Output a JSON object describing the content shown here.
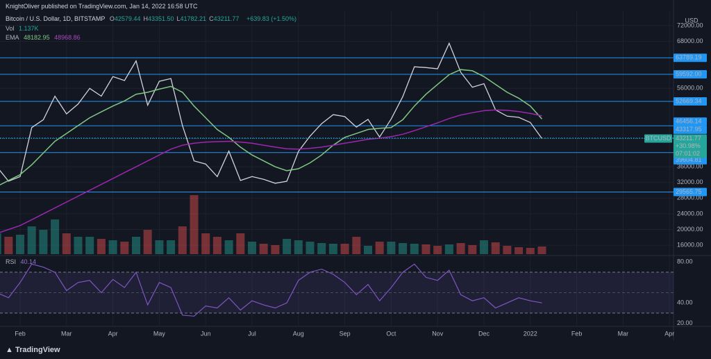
{
  "header": {
    "publisher": "KnightOliver published on TradingView.com, Jan 14, 2022 16:58 UTC",
    "symbol": "Bitcoin / U.S. Dollar, 1D, BITSTAMP",
    "ohlc": [
      [
        "O",
        "42579.44"
      ],
      [
        "H",
        "43351.50"
      ],
      [
        "L",
        "41782.21"
      ],
      [
        "C",
        "43211.77"
      ]
    ],
    "change": "+639.83 (+1.50%)",
    "vol_label": "Vol",
    "vol_value": "1.137K",
    "ema_label": "EMA",
    "ema_values": [
      "48182.95",
      "48968.86"
    ]
  },
  "chart_data": {
    "type": "line",
    "unit": "USD",
    "categories": [
      null,
      null,
      "Feb",
      null,
      null,
      null,
      "Mar",
      null,
      null,
      null,
      "Apr",
      null,
      null,
      null,
      "May",
      null,
      null,
      null,
      "Jun",
      null,
      null,
      null,
      "Jul",
      null,
      null,
      null,
      "Aug",
      null,
      null,
      null,
      "Sep",
      null,
      null,
      null,
      "Oct",
      null,
      null,
      null,
      "Nov",
      null,
      null,
      null,
      "Dec",
      null,
      null,
      null,
      "2022",
      null,
      null,
      null,
      "Feb",
      null,
      null,
      null,
      "Mar",
      null,
      null,
      null,
      "Apr"
    ],
    "series": [
      {
        "color": "#d1d4dc",
        "values": [
          36000,
          32300,
          33500,
          46000,
          48000,
          54000,
          49500,
          52000,
          56000,
          54000,
          59000,
          58000,
          63000,
          51700,
          57800,
          58500,
          46500,
          37500,
          36700,
          33500,
          40000,
          32500,
          33500,
          32800,
          31800,
          32300,
          39900,
          43800,
          47000,
          49300,
          48800,
          46100,
          48100,
          43600,
          48200,
          53900,
          61500,
          61300,
          61000,
          67500,
          60100,
          56300,
          57200,
          50500,
          48900,
          48600,
          47300,
          43200,
          null,
          null,
          null,
          null,
          null,
          null,
          null,
          null,
          null,
          null,
          null
        ]
      },
      {
        "color": "#81c784",
        "values": [
          31000,
          32500,
          34000,
          36500,
          39500,
          42500,
          44500,
          46500,
          48500,
          50000,
          51500,
          52800,
          54500,
          55000,
          55800,
          56500,
          55000,
          51500,
          48500,
          45500,
          43500,
          41000,
          39000,
          37500,
          36000,
          35000,
          35500,
          37000,
          39000,
          41500,
          43500,
          44500,
          45500,
          45800,
          46000,
          48000,
          51500,
          54500,
          57000,
          59500,
          60800,
          60500,
          59000,
          57000,
          55000,
          53500,
          51500,
          48183,
          null,
          null,
          null,
          null,
          null,
          null,
          null,
          null,
          null,
          null,
          null
        ]
      },
      {
        "color": "#9c27b0",
        "values": [
          19000,
          20000,
          21000,
          22500,
          24000,
          25500,
          27000,
          28500,
          30000,
          31500,
          33000,
          34500,
          36000,
          37500,
          39000,
          40500,
          41500,
          42000,
          42300,
          42400,
          42500,
          42300,
          42000,
          41500,
          41000,
          40600,
          40500,
          40700,
          41000,
          41500,
          42000,
          42500,
          43000,
          43300,
          43700,
          44300,
          45200,
          46200,
          47200,
          48300,
          49200,
          49800,
          50300,
          50500,
          50400,
          50100,
          49600,
          48969,
          null,
          null,
          null,
          null,
          null,
          null,
          null,
          null,
          null,
          null,
          null
        ]
      }
    ],
    "ylim": [
      13000,
      75000
    ],
    "yticks": [
      {
        "value": 72000,
        "label": "72000.00"
      },
      {
        "value": 68000,
        "label": "68000.00"
      },
      {
        "value": 56000,
        "label": "56000.00"
      },
      {
        "value": 36000,
        "label": "36000.00"
      },
      {
        "value": 32000,
        "label": "32000.00"
      },
      {
        "value": 28000,
        "label": "28000.00"
      },
      {
        "value": 24000,
        "label": "24000.00"
      },
      {
        "value": 20000,
        "label": "20000.00"
      },
      {
        "value": 16000,
        "label": "16000.00"
      }
    ],
    "grid": true,
    "levels": [
      {
        "value": 63789.19,
        "label": "63789.19"
      },
      {
        "value": 59592.0,
        "label": "59592.00"
      },
      {
        "value": 52669.34,
        "label": "52669.34"
      },
      {
        "value": 46456.14,
        "label": "46456.14"
      },
      {
        "value": 43317.95,
        "label": "43317.95"
      },
      {
        "value": 39604.81,
        "label": "39604.81"
      },
      {
        "value": 29565.75,
        "label": "29565.75"
      }
    ],
    "level_color": "#2196f3",
    "last": {
      "symbol": "BTCUSD",
      "value": 43211.77,
      "price_label": "43211.77",
      "change": "+30.98%",
      "timer": "07:01:02",
      "color": "#26a69a"
    },
    "volume": {
      "values": [
        3,
        2.5,
        2.8,
        4,
        3.5,
        5,
        3,
        2.5,
        2.5,
        2.2,
        2,
        1.8,
        2.5,
        3.5,
        2,
        2,
        4,
        8.5,
        3,
        2.5,
        2,
        3,
        1.8,
        1.5,
        1.3,
        2.2,
        2,
        1.8,
        1.6,
        1.5,
        1.5,
        2.5,
        1.2,
        1.8,
        1.8,
        1.6,
        1.5,
        1.4,
        1.2,
        1.4,
        1.6,
        1.3,
        2,
        1.7,
        1.2,
        1,
        0.9,
        1.1,
        null,
        null,
        null,
        null,
        null,
        null,
        null,
        null,
        null,
        null,
        null
      ],
      "vlim": [
        0,
        10
      ]
    },
    "rsi": {
      "label": "RSI",
      "value_label": "40.14",
      "color": "#7e57c2",
      "values": [
        50,
        45,
        60,
        78,
        75,
        70,
        52,
        60,
        62,
        50,
        63,
        55,
        70,
        38,
        60,
        55,
        28,
        27,
        37,
        35,
        45,
        33,
        42,
        38,
        35,
        40,
        62,
        70,
        73,
        68,
        60,
        48,
        58,
        42,
        55,
        70,
        78,
        65,
        62,
        72,
        48,
        42,
        45,
        35,
        40,
        45,
        42,
        40,
        null,
        null,
        null,
        null,
        null,
        null,
        null,
        null,
        null,
        null,
        null
      ],
      "ylim": [
        17,
        85
      ],
      "yticks": [
        {
          "value": 80,
          "label": "80.00"
        },
        {
          "value": 40,
          "label": "40.00"
        },
        {
          "value": 20,
          "label": "20.00"
        }
      ],
      "bands": [
        70,
        30
      ],
      "midline": 50
    }
  },
  "footer": {
    "brand": "TradingView"
  }
}
